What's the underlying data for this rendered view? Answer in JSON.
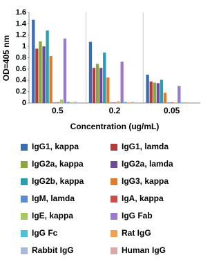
{
  "chart_data": {
    "type": "bar",
    "x_label": "Concentration (ug/mL)",
    "y_label": "OD=405 nm",
    "categories": [
      "0.5",
      "0.2",
      "0.05"
    ],
    "ylim": [
      0,
      1.6
    ],
    "yticks": [
      0,
      0.2,
      0.4,
      0.6,
      0.8,
      1,
      1.2,
      1.4,
      1.6
    ],
    "series": [
      {
        "name": "IgG1, kappa",
        "color": "#3b6db3",
        "values": [
          1.47,
          1.08,
          0.5
        ]
      },
      {
        "name": "IgG1, lamda",
        "color": "#b23b3b",
        "values": [
          0.96,
          0.62,
          0.38
        ]
      },
      {
        "name": "IgG2a, kappa",
        "color": "#8aa63c",
        "values": [
          1.09,
          0.69,
          0.36
        ]
      },
      {
        "name": "IgG2a, lamda",
        "color": "#6b4c9a",
        "values": [
          1.0,
          0.62,
          0.35
        ]
      },
      {
        "name": "IgG2b, kappa",
        "color": "#2b9cb2",
        "values": [
          1.28,
          0.89,
          0.41
        ]
      },
      {
        "name": "IgG3, kappa",
        "color": "#e07b2c",
        "values": [
          0.83,
          0.45,
          0.18
        ]
      },
      {
        "name": "IgM, lamda",
        "color": "#5b8bd0",
        "values": [
          0.01,
          0.01,
          0.01
        ]
      },
      {
        "name": "IgA, kappa",
        "color": "#cc4b4b",
        "values": [
          0.01,
          0.01,
          0.01
        ]
      },
      {
        "name": "IgE, kappa",
        "color": "#a8c862",
        "values": [
          0.06,
          0.03,
          0.01
        ]
      },
      {
        "name": "IgG Fab",
        "color": "#9b7bc9",
        "values": [
          1.14,
          0.73,
          0.3
        ]
      },
      {
        "name": "IgG Fc",
        "color": "#4cc0d8",
        "values": [
          0.02,
          0.02,
          0.01
        ]
      },
      {
        "name": "Rat IgG",
        "color": "#f2a152",
        "values": [
          0.01,
          0.01,
          0.01
        ]
      },
      {
        "name": "Rabbit IgG",
        "color": "#a9b9d9",
        "values": [
          0.02,
          0.02,
          0.01
        ]
      },
      {
        "name": "Human IgG",
        "color": "#d9a9a9",
        "values": [
          0.01,
          0.01,
          0.01
        ]
      }
    ]
  }
}
